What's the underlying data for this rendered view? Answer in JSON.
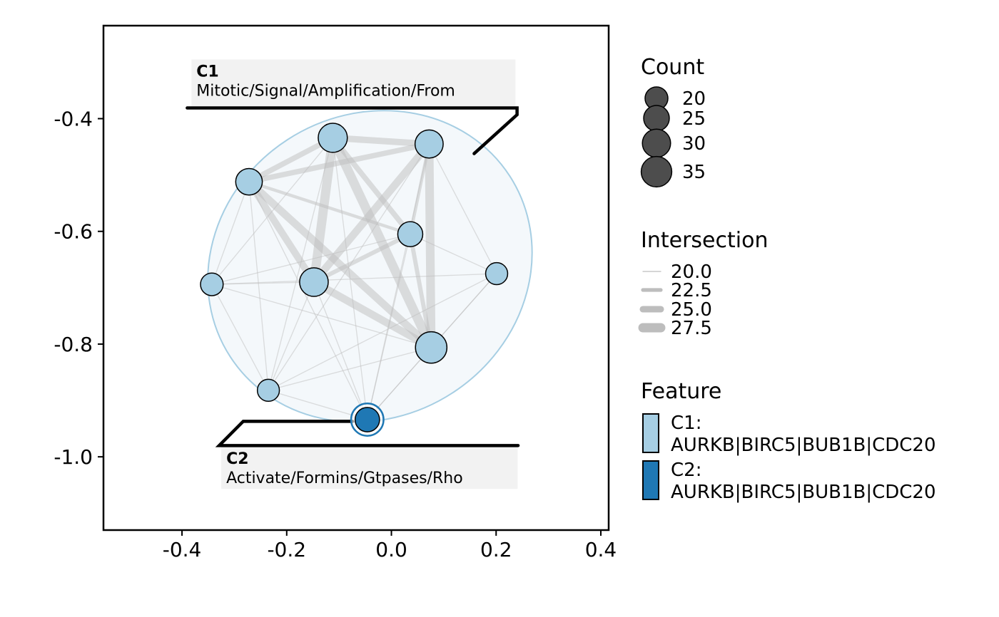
{
  "chart_data": {
    "type": "scatter",
    "subtype": "enrichment-network",
    "title": "",
    "xlabel": "",
    "ylabel": "",
    "xlim": [
      -0.55,
      0.415
    ],
    "ylim": [
      -1.13,
      -0.235
    ],
    "x_ticks": [
      {
        "value": -0.4,
        "label": "-0.4"
      },
      {
        "value": -0.2,
        "label": "-0.2"
      },
      {
        "value": 0.0,
        "label": "0.0"
      },
      {
        "value": 0.2,
        "label": "0.2"
      },
      {
        "value": 0.4,
        "label": "0.4"
      }
    ],
    "y_ticks": [
      {
        "value": -0.4,
        "label": "-0.4"
      },
      {
        "value": -0.6,
        "label": "-0.6"
      },
      {
        "value": -0.8,
        "label": "-0.8"
      },
      {
        "value": -1.0,
        "label": "-1.0"
      }
    ],
    "grid": false,
    "nodes": [
      {
        "x": -0.112,
        "y": -0.434,
        "count": 31,
        "cluster": "C1"
      },
      {
        "x": 0.072,
        "y": -0.445,
        "count": 29,
        "cluster": "C1"
      },
      {
        "x": -0.272,
        "y": -0.512,
        "count": 26,
        "cluster": "C1"
      },
      {
        "x": 0.036,
        "y": -0.605,
        "count": 23,
        "cluster": "C1"
      },
      {
        "x": -0.148,
        "y": -0.69,
        "count": 30,
        "cluster": "C1"
      },
      {
        "x": -0.343,
        "y": -0.694,
        "count": 19,
        "cluster": "C1"
      },
      {
        "x": 0.201,
        "y": -0.675,
        "count": 18,
        "cluster": "C1"
      },
      {
        "x": 0.076,
        "y": -0.806,
        "count": 36,
        "cluster": "C1"
      },
      {
        "x": -0.235,
        "y": -0.882,
        "count": 18,
        "cluster": "C1"
      },
      {
        "x": -0.046,
        "y": -0.934,
        "count": 22,
        "cluster": "C2"
      }
    ],
    "edges": [
      {
        "from": 0,
        "to": 1,
        "intersection": 25.0
      },
      {
        "from": 0,
        "to": 2,
        "intersection": 24.0
      },
      {
        "from": 0,
        "to": 4,
        "intersection": 27.5
      },
      {
        "from": 0,
        "to": 7,
        "intersection": 27.5
      },
      {
        "from": 0,
        "to": 3,
        "intersection": 24.0
      },
      {
        "from": 0,
        "to": 9,
        "intersection": 20.0
      },
      {
        "from": 0,
        "to": 5,
        "intersection": 20.0
      },
      {
        "from": 0,
        "to": 8,
        "intersection": 20.0
      },
      {
        "from": 1,
        "to": 2,
        "intersection": 24.0
      },
      {
        "from": 1,
        "to": 4,
        "intersection": 26.0
      },
      {
        "from": 1,
        "to": 7,
        "intersection": 27.0
      },
      {
        "from": 1,
        "to": 3,
        "intersection": 22.0
      },
      {
        "from": 1,
        "to": 6,
        "intersection": 20.0
      },
      {
        "from": 1,
        "to": 8,
        "intersection": 20.0
      },
      {
        "from": 1,
        "to": 9,
        "intersection": 20.0
      },
      {
        "from": 2,
        "to": 4,
        "intersection": 25.5
      },
      {
        "from": 2,
        "to": 7,
        "intersection": 26.0
      },
      {
        "from": 2,
        "to": 3,
        "intersection": 22.0
      },
      {
        "from": 2,
        "to": 5,
        "intersection": 20.0
      },
      {
        "from": 2,
        "to": 8,
        "intersection": 20.0
      },
      {
        "from": 2,
        "to": 9,
        "intersection": 20.0
      },
      {
        "from": 4,
        "to": 7,
        "intersection": 26.0
      },
      {
        "from": 4,
        "to": 3,
        "intersection": 23.0
      },
      {
        "from": 4,
        "to": 5,
        "intersection": 20.0
      },
      {
        "from": 4,
        "to": 8,
        "intersection": 20.0
      },
      {
        "from": 4,
        "to": 9,
        "intersection": 20.0
      },
      {
        "from": 3,
        "to": 7,
        "intersection": 23.0
      },
      {
        "from": 3,
        "to": 6,
        "intersection": 20.0
      },
      {
        "from": 3,
        "to": 9,
        "intersection": 20.0
      },
      {
        "from": 3,
        "to": 5,
        "intersection": 20.0
      },
      {
        "from": 7,
        "to": 6,
        "intersection": 20.0
      },
      {
        "from": 7,
        "to": 5,
        "intersection": 20.0
      },
      {
        "from": 7,
        "to": 8,
        "intersection": 20.0
      },
      {
        "from": 7,
        "to": 9,
        "intersection": 20.0
      },
      {
        "from": 5,
        "to": 6,
        "intersection": 20.0
      },
      {
        "from": 5,
        "to": 8,
        "intersection": 20.0
      },
      {
        "from": 8,
        "to": 9,
        "intersection": 20.0
      },
      {
        "from": 6,
        "to": 9,
        "intersection": 20.0
      },
      {
        "from": 6,
        "to": 8,
        "intersection": 20.0
      }
    ],
    "cluster_hull": {
      "cluster": "C1",
      "cx": -0.041,
      "cy": -0.662,
      "rx": 0.318,
      "ry": 0.268,
      "rotation_deg": -33
    },
    "cluster_c2_ring": {
      "cluster": "C2",
      "x": -0.046,
      "y": -0.934,
      "r": 0.031
    },
    "callouts": [
      {
        "cluster": "C1",
        "title": "C1",
        "subtitle": "Mitotic/Signal/Amplification/From",
        "leader": [
          [
            -0.39,
            -0.381
          ],
          [
            0.24,
            -0.381
          ],
          [
            0.24,
            -0.393
          ],
          [
            0.158,
            -0.462
          ]
        ],
        "box": {
          "x0": -0.382,
          "x1": 0.237,
          "y0": -0.295,
          "y1": -0.378
        }
      },
      {
        "cluster": "C2",
        "title": "C2",
        "subtitle": "Activate/Formins/Gtpases/Rho",
        "leader": [
          [
            -0.074,
            -0.937
          ],
          [
            -0.283,
            -0.937
          ],
          [
            -0.329,
            -0.98
          ],
          [
            0.242,
            -0.98
          ]
        ],
        "box": {
          "x0": -0.325,
          "x1": 0.241,
          "y0": -0.982,
          "y1": -1.057
        }
      }
    ],
    "legends": {
      "count": {
        "title": "Count",
        "entries": [
          {
            "label": "20",
            "value": 20
          },
          {
            "label": "25",
            "value": 25
          },
          {
            "label": "30",
            "value": 30
          },
          {
            "label": "35",
            "value": 35
          }
        ]
      },
      "intersection": {
        "title": "Intersection",
        "entries": [
          {
            "label": "20.0",
            "value": 20.0
          },
          {
            "label": "22.5",
            "value": 22.5
          },
          {
            "label": "25.0",
            "value": 25.0
          },
          {
            "label": "27.5",
            "value": 27.5
          }
        ]
      },
      "feature": {
        "title": "Feature",
        "entries": [
          {
            "label_line1": "C1:",
            "label_line2": "AURKB|BIRC5|BUB1B|CDC20",
            "color": "#a6cee3"
          },
          {
            "label_line1": "C2:",
            "label_line2": "AURKB|BIRC5|BUB1B|CDC20",
            "color": "#1f78b4"
          }
        ]
      }
    },
    "colors": {
      "c1_fill": "#a6cee3",
      "c2_fill": "#1f78b4",
      "hull_stroke": "#a6cee3",
      "hull_fill": "#f4f8fb",
      "edge": "#bdbdbd",
      "callout_box": "#f2f2f2",
      "legend_count_fill": "#4d4d4d"
    }
  }
}
